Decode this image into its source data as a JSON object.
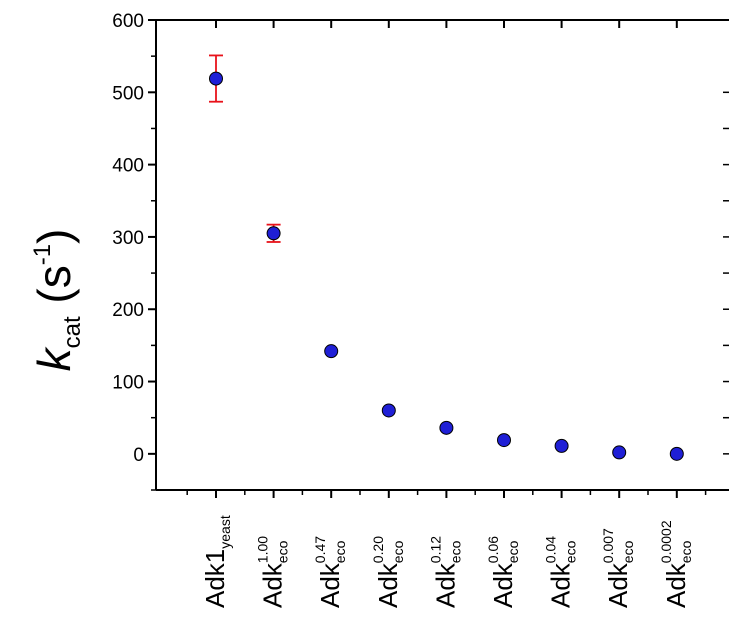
{
  "chart_data": {
    "type": "scatter",
    "ylabel": {
      "k": "k",
      "k_sub": "cat",
      "unit_open": "(s",
      "unit_sup": "-1",
      "unit_close": ")"
    },
    "ylim": [
      -50,
      600
    ],
    "yticks": [
      0,
      100,
      200,
      300,
      400,
      500,
      600
    ],
    "categories": [
      {
        "base": "Adk1",
        "sub": "yeast",
        "sup": ""
      },
      {
        "base": "Adk",
        "sub": "eco",
        "sup": "1.00"
      },
      {
        "base": "Adk",
        "sub": "eco",
        "sup": "0.47"
      },
      {
        "base": "Adk",
        "sub": "eco",
        "sup": "0.20"
      },
      {
        "base": "Adk",
        "sub": "eco",
        "sup": "0.12"
      },
      {
        "base": "Adk",
        "sub": "eco",
        "sup": "0.06"
      },
      {
        "base": "Adk",
        "sub": "eco",
        "sup": "0.04"
      },
      {
        "base": "Adk",
        "sub": "eco",
        "sup": "0.007"
      },
      {
        "base": "Adk",
        "sub": "eco",
        "sup": "0.0002"
      }
    ],
    "values": [
      519,
      305,
      142,
      60,
      36,
      19,
      11,
      2,
      0
    ],
    "errors": [
      32,
      12,
      0,
      0,
      0,
      0,
      0,
      0,
      0
    ],
    "colors": {
      "marker": "#1f1fd6",
      "marker_edge": "#000000",
      "errorbar": "#e8121a",
      "axis": "#000000"
    },
    "grid": false
  }
}
